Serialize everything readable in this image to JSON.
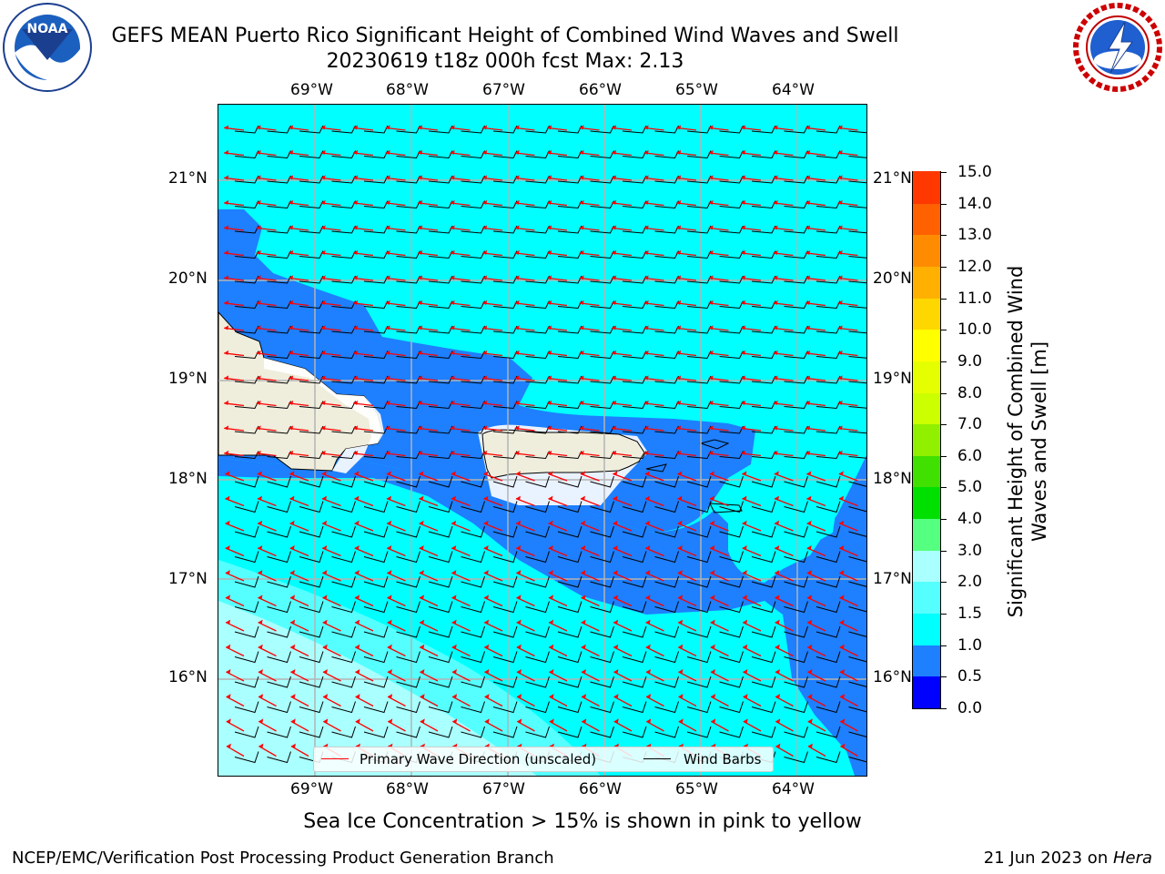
{
  "title": {
    "line1": "GEFS MEAN Puerto Rico Significant Height of Combined Wind Waves and Swell",
    "line2": "20230619 t18z 000h fcst   Max: 2.13"
  },
  "logos": {
    "left": "NOAA",
    "left_ring": "NATIONAL OCEANIC AND ATMOSPHERIC ADMINISTRATION · U.S. DEPARTMENT OF COMMERCE",
    "right_ring": "NATIONAL WEATHER SERVICE"
  },
  "map": {
    "lon_labels": [
      "69°W",
      "68°W",
      "67°W",
      "66°W",
      "65°W",
      "64°W"
    ],
    "lat_labels": [
      "21°N",
      "20°N",
      "19°N",
      "18°N",
      "17°N",
      "16°N"
    ],
    "lon_range": [
      -70.0,
      -63.3
    ],
    "lat_range": [
      15.0,
      21.75
    ],
    "colors": {
      "ocean": "#00ffff",
      "wave_1_1p5": "#00ffff",
      "wave_0p5_1": "#1e7fff",
      "wave_1p5_2": "#55ffff",
      "wave_2_3": "#aaffff",
      "land": "#efeddc",
      "primary_wave_arrow": "#ff0000",
      "wind_barb": "#000000",
      "grid": "#b4b4b4"
    },
    "legend": {
      "primary_wave": "Primary Wave Direction (unscaled)",
      "wind_barbs": "Wind Barbs"
    }
  },
  "colorbar": {
    "label": "Significant Height of Combined Wind Waves and Swell [m]",
    "ticks": [
      "15.0",
      "14.0",
      "13.0",
      "12.0",
      "11.0",
      "10.0",
      "9.0",
      "8.0",
      "7.0",
      "6.0",
      "5.0",
      "4.0",
      "3.0",
      "2.0",
      "1.5",
      "1.0",
      "0.5",
      "0.0"
    ],
    "colors": [
      "#0000ff",
      "#1e7fff",
      "#00ffff",
      "#55ffff",
      "#aaffff",
      "#55ff80",
      "#00e000",
      "#40e000",
      "#90f000",
      "#ccff00",
      "#e6ff00",
      "#ffff00",
      "#ffd700",
      "#ffb000",
      "#ff8c00",
      "#ff6000",
      "#ff3800",
      "#ff0000"
    ]
  },
  "sea_ice_note": "Sea Ice Concentration > 15% is shown in pink to yellow",
  "footer": {
    "left": "NCEP/EMC/Verification Post Processing Product Generation Branch",
    "right_date": "21 Jun 2023 on ",
    "right_machine": "Hera"
  }
}
